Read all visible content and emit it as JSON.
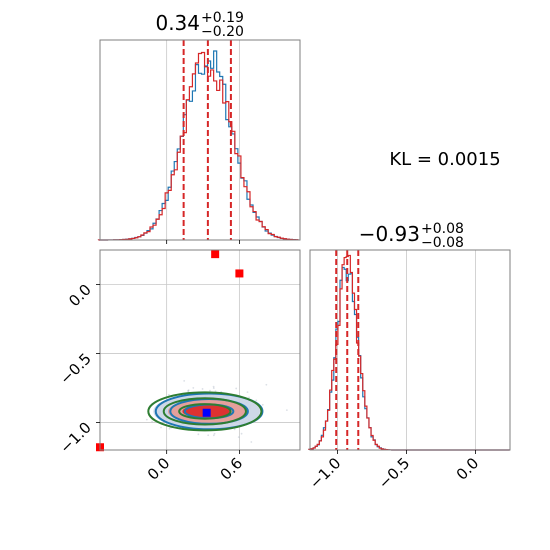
{
  "chart_data": {
    "type": "corner",
    "kl_text": "KL = 0.0015",
    "colors": {
      "hist_a": "#1f77b4",
      "hist_b": "#d62728",
      "quantile_line": "#d62728",
      "truth_square": "#0000ff",
      "outlier_square": "#ff0000",
      "contour_a": "#1f77b4",
      "contour_b": "#2e7d32",
      "fill_inner": "#dc2626",
      "fill_mid": "#e89a93",
      "fill_outer": "#c9d4e6"
    },
    "param1": {
      "title": {
        "main": "0.34",
        "plus": "+0.19",
        "minus": "−0.20"
      },
      "range": [
        -0.55,
        1.1
      ],
      "ticks": [
        0.0,
        0.6
      ],
      "tick_labels": [
        "0.0",
        "0.6"
      ],
      "quantiles": [
        0.14,
        0.34,
        0.53
      ],
      "hist_center": 0.34,
      "hist_sigma": 0.2,
      "hist_bin": 0.025
    },
    "param2": {
      "title": {
        "main": "−0.93",
        "plus": "+0.08",
        "minus": "−0.08"
      },
      "range": [
        -1.2,
        0.25
      ],
      "ticks": [
        -1.0,
        -0.5,
        0.0
      ],
      "tick_labels": [
        "−1.0",
        "−0.5",
        "0.0"
      ],
      "quantiles": [
        -1.01,
        -0.93,
        -0.85
      ],
      "hist_center": -0.93,
      "hist_sigma": 0.08,
      "hist_bin": 0.015
    },
    "joint": {
      "y_ticks": [
        0.0,
        -0.5,
        -1.0
      ],
      "y_tick_labels": [
        "0.0",
        "−0.5",
        "−1.0"
      ],
      "truth_point": {
        "x": 0.33,
        "y": -0.93
      },
      "outlier_points": [
        {
          "x": 0.4,
          "y": 0.22
        },
        {
          "x": 0.6,
          "y": 0.08
        },
        {
          "x": -0.55,
          "y": -1.18
        }
      ],
      "contour_center": {
        "x": 0.33,
        "y": -0.92
      },
      "contour_levels": [
        {
          "rx": 0.2,
          "ry": 0.05
        },
        {
          "rx": 0.32,
          "ry": 0.09
        },
        {
          "rx": 0.44,
          "ry": 0.13
        }
      ]
    }
  }
}
